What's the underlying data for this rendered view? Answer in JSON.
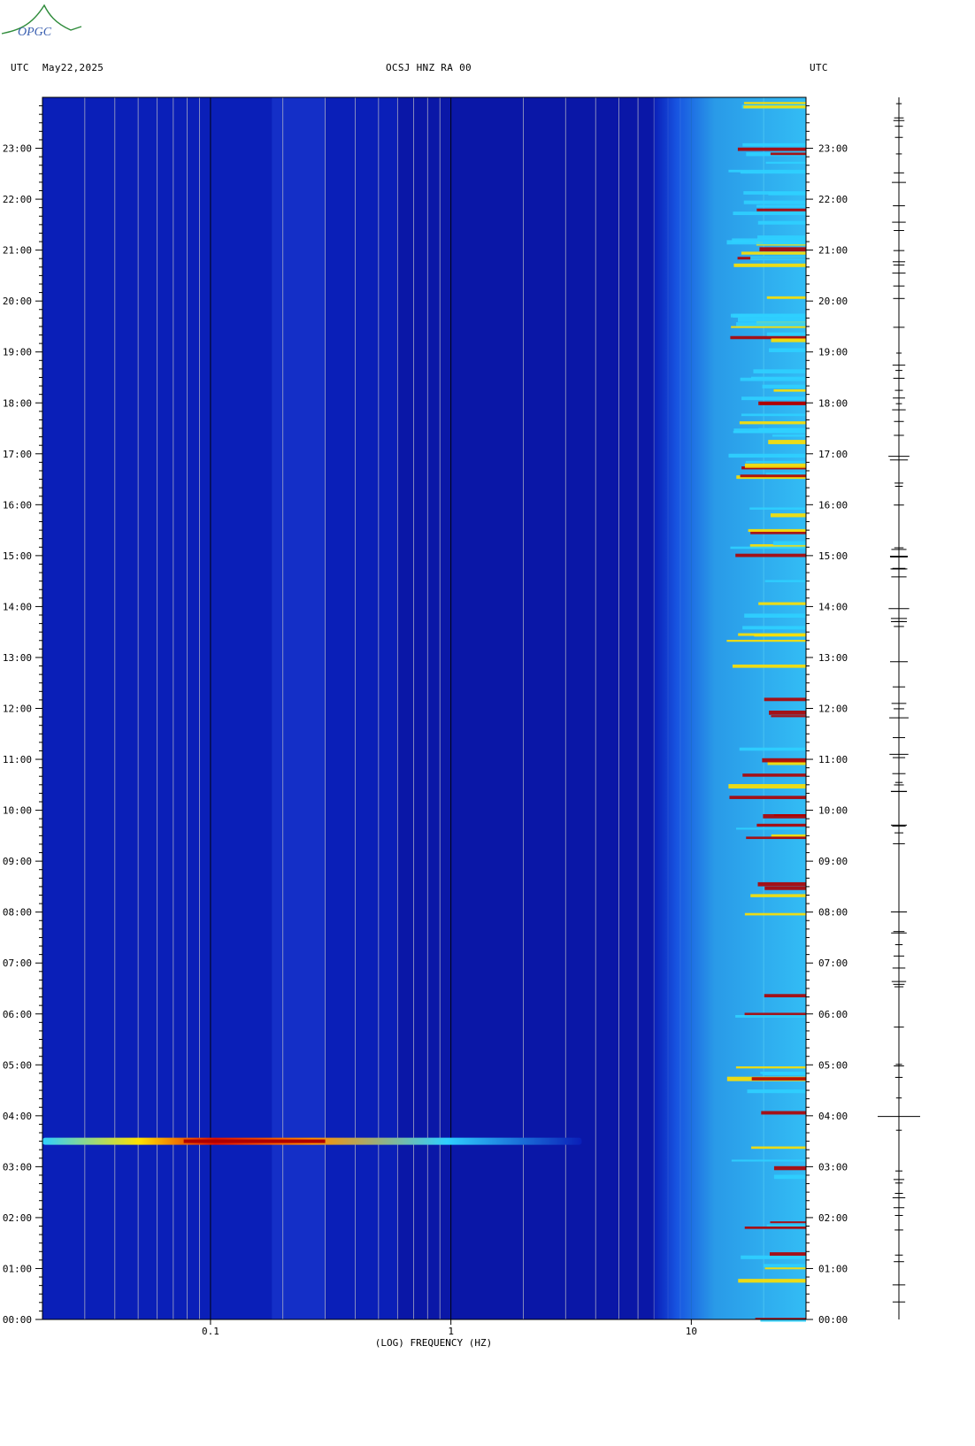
{
  "header": {
    "left_tz": "UTC",
    "date": "May22,2025",
    "station": "OCSJ HNZ RA 00",
    "right_tz": "UTC"
  },
  "logo": {
    "text": "OPGC"
  },
  "colors": {
    "background": "#0a1fb8",
    "dark_blue": "#0a14a0",
    "cyan": "#2fd0ff",
    "yellow": "#ffe000",
    "red": "#b00000",
    "gridline": "#c8c8c8"
  },
  "chart_data": {
    "type": "heatmap",
    "title": "OCSJ HNZ RA 00",
    "xlabel": "(LOG) FREQUENCY (HZ)",
    "x_scale": "log",
    "x_range_hz": [
      0.02,
      30
    ],
    "x_ticks": [
      {
        "value": 0.1,
        "label": "0.1"
      },
      {
        "value": 1,
        "label": "1"
      },
      {
        "value": 10,
        "label": "10"
      }
    ],
    "y_range_hours": [
      0,
      24
    ],
    "y_ticks": [
      "00:00",
      "01:00",
      "02:00",
      "03:00",
      "04:00",
      "05:00",
      "06:00",
      "07:00",
      "08:00",
      "09:00",
      "10:00",
      "11:00",
      "12:00",
      "13:00",
      "14:00",
      "15:00",
      "16:00",
      "17:00",
      "18:00",
      "19:00",
      "20:00",
      "21:00",
      "22:00",
      "23:00"
    ],
    "events": [
      {
        "time": "03:30",
        "description_freq_range_hz": [
          0.02,
          3.5
        ],
        "peak_freq_range_hz": [
          0.06,
          0.3
        ],
        "intensity": "high"
      }
    ],
    "high_freq_noise_band_hz": [
      7,
      30
    ],
    "high_activity_hours": [
      6,
      17
    ]
  }
}
